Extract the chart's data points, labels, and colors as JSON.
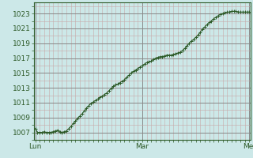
{
  "background_color": "#cce8e8",
  "plot_bg_color": "#cce8e8",
  "line_color": "#2d5a27",
  "marker_color": "#2d5a27",
  "ylim": [
    1006.0,
    1024.5
  ],
  "yticks": [
    1007,
    1009,
    1011,
    1013,
    1015,
    1017,
    1019,
    1021,
    1023
  ],
  "xtick_labels": [
    "Lun",
    "Mar",
    "Mer"
  ],
  "xtick_positions": [
    0,
    48,
    96
  ],
  "tick_fontsize": 6.5,
  "line_width": 0.8,
  "marker_size": 2.5,
  "y_values": [
    1007.5,
    1007.0,
    1007.0,
    1007.0,
    1007.1,
    1007.0,
    1007.0,
    1007.0,
    1007.1,
    1007.2,
    1007.3,
    1007.1,
    1007.0,
    1007.1,
    1007.2,
    1007.5,
    1007.8,
    1008.2,
    1008.5,
    1008.9,
    1009.2,
    1009.5,
    1009.9,
    1010.3,
    1010.6,
    1010.9,
    1011.1,
    1011.3,
    1011.5,
    1011.7,
    1011.9,
    1012.1,
    1012.3,
    1012.6,
    1012.9,
    1013.2,
    1013.4,
    1013.5,
    1013.7,
    1013.9,
    1014.1,
    1014.4,
    1014.7,
    1015.0,
    1015.2,
    1015.4,
    1015.6,
    1015.8,
    1016.0,
    1016.2,
    1016.4,
    1016.5,
    1016.6,
    1016.8,
    1017.0,
    1017.1,
    1017.2,
    1017.2,
    1017.3,
    1017.4,
    1017.4,
    1017.4,
    1017.5,
    1017.6,
    1017.7,
    1017.8,
    1018.0,
    1018.3,
    1018.6,
    1019.0,
    1019.3,
    1019.5,
    1019.8,
    1020.1,
    1020.5,
    1020.9,
    1021.2,
    1021.5,
    1021.8,
    1022.0,
    1022.3,
    1022.5,
    1022.7,
    1022.9,
    1023.0,
    1023.1,
    1023.2,
    1023.2,
    1023.3,
    1023.3,
    1023.3,
    1023.2,
    1023.2,
    1023.2,
    1023.2,
    1023.2,
    1023.2
  ]
}
